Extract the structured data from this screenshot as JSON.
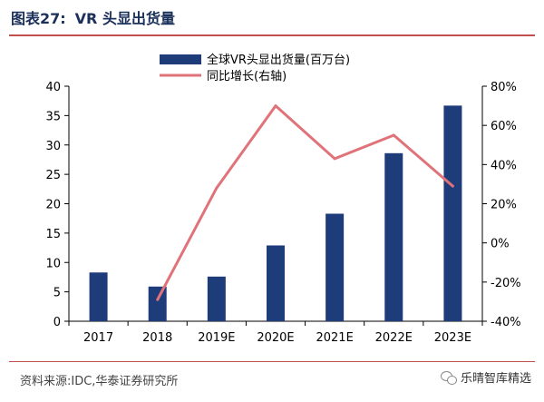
{
  "header": {
    "title_prefix": "图表27:",
    "title_text": "VR 头显出货量"
  },
  "footer": {
    "source": "资料来源:IDC,华泰证券研究所",
    "watermark": "乐晴智库精选"
  },
  "colors": {
    "bar": "#1f3c7a",
    "line": "#e0737a",
    "rule": "#c0504d"
  },
  "chart_data": {
    "type": "bar",
    "categories": [
      "2017",
      "2018",
      "2019E",
      "2020E",
      "2021E",
      "2022E",
      "2023E"
    ],
    "series": [
      {
        "name": "全球VR头显出货量(百万台)",
        "type": "bar",
        "axis": "left",
        "values": [
          8.3,
          5.9,
          7.6,
          12.9,
          18.3,
          28.6,
          36.7
        ]
      },
      {
        "name": "同比增长(右轴)",
        "type": "line",
        "axis": "right",
        "values": [
          null,
          -29,
          28,
          70,
          43,
          55,
          29
        ]
      }
    ],
    "y_left": {
      "min": 0,
      "max": 40,
      "step": 5,
      "ticks": [
        "0",
        "5",
        "10",
        "15",
        "20",
        "25",
        "30",
        "35",
        "40"
      ]
    },
    "y_right": {
      "min": -40,
      "max": 80,
      "step": 20,
      "ticks": [
        "-40%",
        "-20%",
        "0%",
        "20%",
        "40%",
        "60%",
        "80%"
      ]
    },
    "legend_position": "top-center",
    "grid": false
  }
}
